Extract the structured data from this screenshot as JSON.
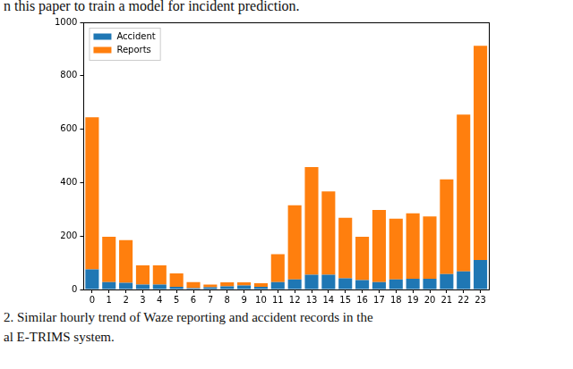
{
  "chart_data": {
    "type": "bar",
    "annotations": [
      "n this paper to train a model for incident prediction.",
      "2.  Similar hourly trend of Waze reporting and accident records in the",
      "al E-TRIMS system."
    ],
    "categories": [
      "0",
      "1",
      "2",
      "3",
      "4",
      "5",
      "6",
      "7",
      "8",
      "9",
      "10",
      "11",
      "12",
      "13",
      "14",
      "15",
      "16",
      "17",
      "18",
      "19",
      "20",
      "21",
      "22",
      "23"
    ],
    "series": [
      {
        "name": "Accident",
        "color": "#1f77b4",
        "values": [
          75,
          28,
          25,
          18,
          18,
          10,
          5,
          8,
          12,
          15,
          10,
          28,
          38,
          55,
          55,
          42,
          35,
          28,
          38,
          40,
          40,
          58,
          68,
          110
        ]
      },
      {
        "name": "Reports",
        "color": "#ff7f0e",
        "values": [
          570,
          169,
          160,
          72,
          72,
          50,
          23,
          10,
          15,
          12,
          13,
          104,
          277,
          403,
          312,
          226,
          162,
          270,
          227,
          245,
          233,
          354,
          587,
          802
        ]
      }
    ],
    "stacked": true,
    "ylim": [
      0,
      1000
    ],
    "yticks": [
      0,
      200,
      400,
      600,
      800,
      1000
    ],
    "grid": false,
    "legend": "upper left"
  }
}
